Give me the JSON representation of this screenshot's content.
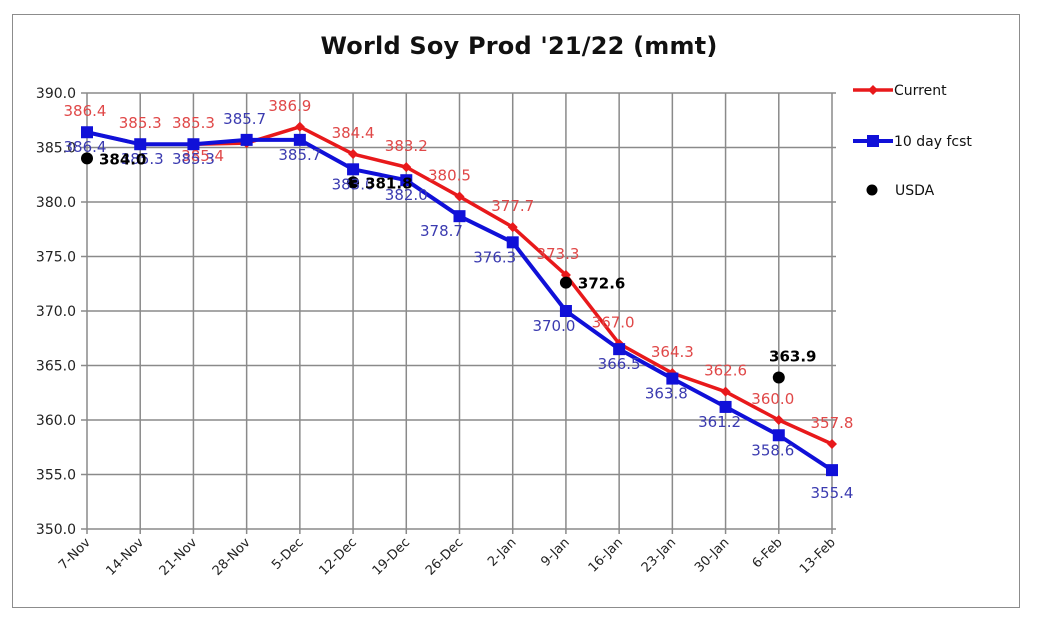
{
  "chart_data": {
    "type": "line",
    "title": "World Soy Prod '21/22 (mmt)",
    "xlabel": "",
    "ylabel": "",
    "categories": [
      "7-Nov",
      "14-Nov",
      "21-Nov",
      "28-Nov",
      "5-Dec",
      "12-Dec",
      "19-Dec",
      "26-Dec",
      "2-Jan",
      "9-Jan",
      "16-Jan",
      "23-Jan",
      "30-Jan",
      "6-Feb",
      "13-Feb"
    ],
    "ylim": [
      350.0,
      390.0
    ],
    "yticks": [
      "390.0",
      "385.0",
      "380.0",
      "375.0",
      "370.0",
      "365.0",
      "360.0",
      "355.0",
      "350.0"
    ],
    "ytick_values": [
      390,
      385,
      380,
      375,
      370,
      365,
      360,
      355,
      350
    ],
    "grid": true,
    "legend_position": "right",
    "series": [
      {
        "name": "Current",
        "color": "#e8191b",
        "label_color": "#e04848",
        "marker": "diamond",
        "values": [
          386.4,
          385.3,
          385.3,
          385.4,
          386.9,
          384.4,
          383.2,
          380.5,
          377.7,
          373.3,
          367.0,
          364.3,
          362.6,
          360.0,
          357.8
        ],
        "labels": [
          "386.4",
          "385.3",
          "385.3",
          "385.4",
          "386.9",
          "384.4",
          "383.2",
          "380.5",
          "377.7",
          "373.3",
          "367.0",
          "364.3",
          "362.6",
          "360.0",
          "357.8"
        ]
      },
      {
        "name": "10 day fcst",
        "color": "#1010d8",
        "label_color": "#3b3bb0",
        "marker": "square",
        "values": [
          386.4,
          385.3,
          385.3,
          385.7,
          385.7,
          383.0,
          382.0,
          378.7,
          376.3,
          370.0,
          366.5,
          363.8,
          361.2,
          358.6,
          355.4
        ],
        "labels": [
          "386.4",
          "385.3",
          "385.3",
          "385.7",
          "385.7",
          "383.0",
          "382.0",
          "378.7",
          "376.3",
          "370.0",
          "366.5",
          "363.8",
          "361.2",
          "358.6",
          "355.4"
        ]
      },
      {
        "name": "USDA",
        "color": "#000000",
        "label_color": "#000000",
        "marker": "circle",
        "points": [
          {
            "x": "7-Nov",
            "value": 384.0,
            "label": "384.0"
          },
          {
            "x": "12-Dec",
            "value": 381.8,
            "label": "381.8"
          },
          {
            "x": "9-Jan",
            "value": 372.6,
            "label": "372.6"
          },
          {
            "x": "6-Feb",
            "value": 363.9,
            "label": "363.9"
          }
        ]
      }
    ]
  }
}
